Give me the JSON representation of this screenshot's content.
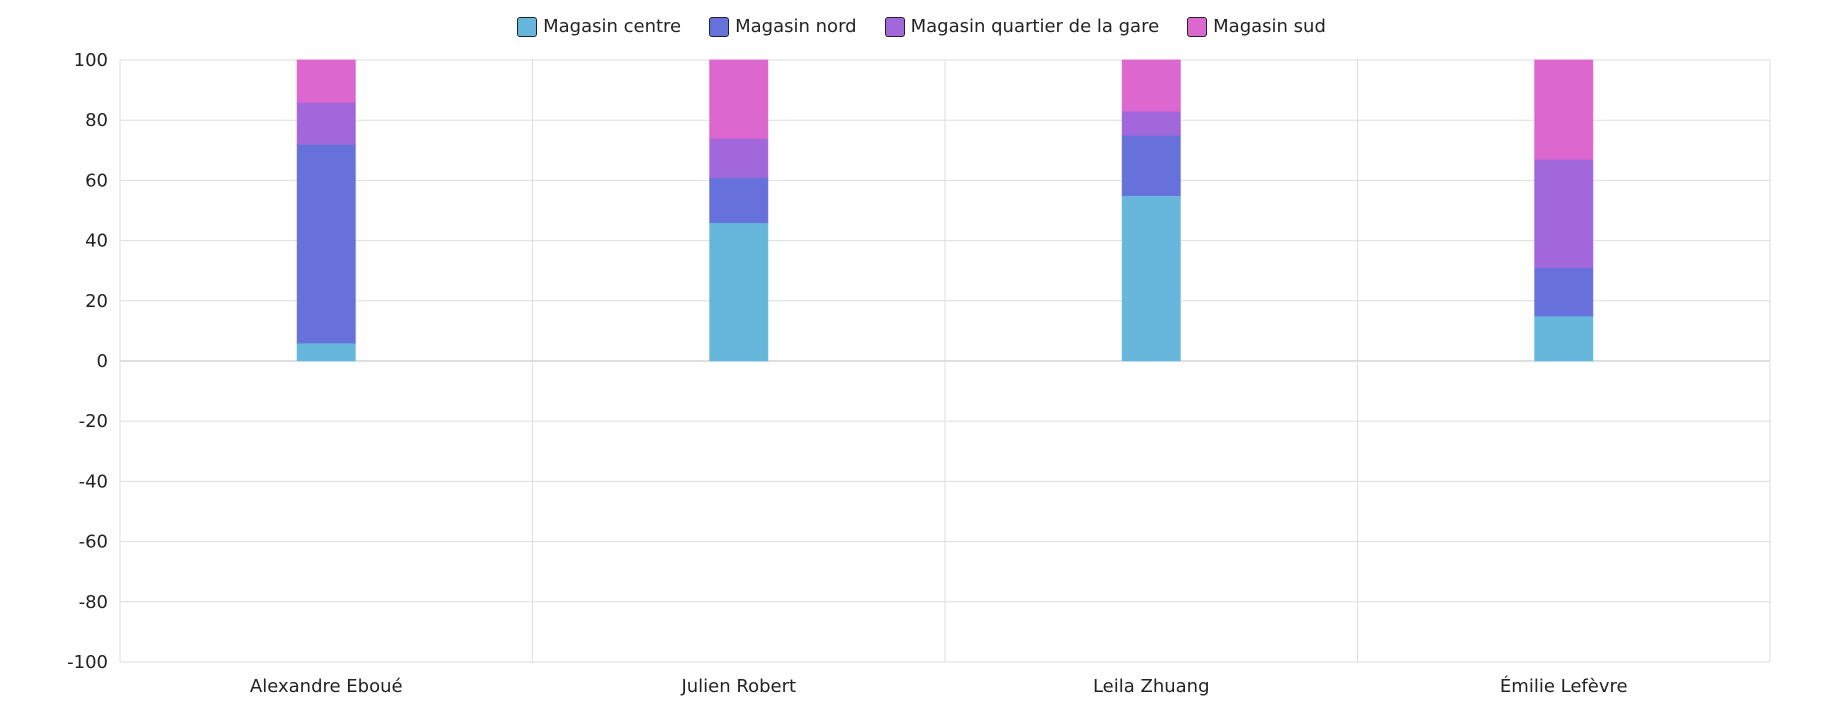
{
  "chart_data": {
    "type": "bar",
    "stacked": true,
    "categories": [
      "Alexandre Eboué",
      "Julien Robert",
      "Leila Zhuang",
      "Émilie Lefèvre"
    ],
    "series": [
      {
        "name": "Magasin centre",
        "color": "#67b7dc",
        "values": [
          6,
          46,
          55,
          15
        ]
      },
      {
        "name": "Magasin nord",
        "color": "#6771dc",
        "values": [
          66,
          15,
          20,
          16
        ]
      },
      {
        "name": "Magasin quartier de la gare",
        "color": "#a367dc",
        "values": [
          14,
          13,
          8,
          36
        ]
      },
      {
        "name": "Magasin sud",
        "color": "#dc67ce",
        "values": [
          14,
          26,
          17,
          33
        ]
      }
    ],
    "ylim": [
      -100,
      100
    ],
    "yticks": [
      100,
      80,
      60,
      40,
      20,
      0,
      -20,
      -40,
      -60,
      -80,
      -100
    ],
    "grid": true,
    "legend_position": "top"
  }
}
